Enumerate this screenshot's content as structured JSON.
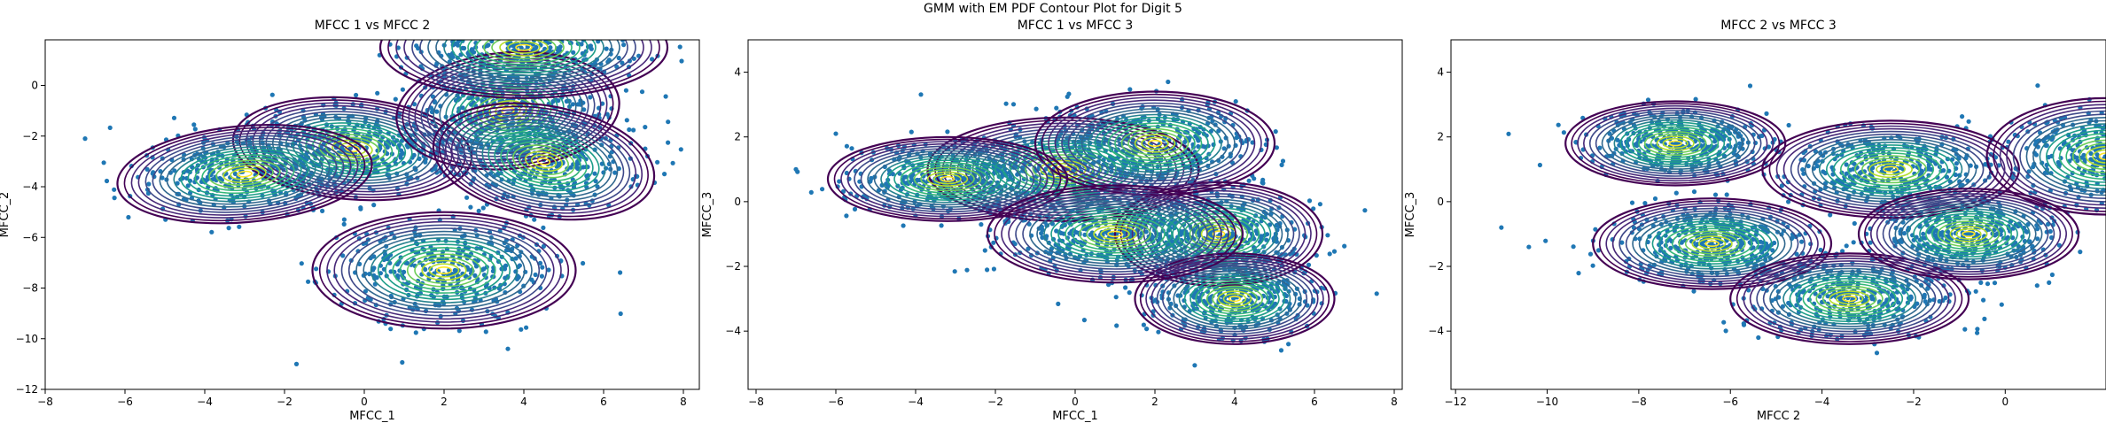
{
  "figure": {
    "title": "GMM with EM PDF Contour Plot for Digit 5"
  },
  "chart_data": [
    {
      "type": "scatter",
      "title": "MFCC 1 vs MFCC 2",
      "xlabel": "MFCC_1",
      "ylabel": "MFCC_2",
      "xlim": [
        -8,
        8.4
      ],
      "ylim": [
        -12,
        1.8
      ],
      "xticks": [
        -8,
        -6,
        -4,
        -2,
        0,
        2,
        4,
        6,
        8
      ],
      "yticks": [
        -12,
        -10,
        -8,
        -6,
        -4,
        -2,
        0
      ],
      "point_color": "#1f77b4",
      "contour_colormap": "viridis",
      "components": [
        {
          "mean": [
            -0.3,
            -2.5
          ],
          "sd": [
            3.0,
            2.0
          ],
          "rot": -5
        },
        {
          "mean": [
            3.6,
            -1.0
          ],
          "sd": [
            2.8,
            2.3
          ],
          "rot": 5
        },
        {
          "mean": [
            2.0,
            -7.3
          ],
          "sd": [
            3.3,
            2.3
          ],
          "rot": 0
        },
        {
          "mean": [
            -3.0,
            -3.5
          ],
          "sd": [
            3.2,
            1.9
          ],
          "rot": 5
        },
        {
          "mean": [
            4.5,
            -3.0
          ],
          "sd": [
            2.8,
            2.2
          ],
          "rot": -10
        },
        {
          "mean": [
            4.0,
            1.5
          ],
          "sd": [
            3.6,
            2.0
          ],
          "rot": 0
        }
      ],
      "points": {
        "count": 2200,
        "outliers": [
          [
            -1.7,
            -11.0
          ],
          [
            -7.0,
            -2.1
          ],
          [
            3.6,
            -10.4
          ]
        ]
      }
    },
    {
      "type": "scatter",
      "title": "MFCC 1 vs MFCC 3",
      "xlabel": "MFCC_1",
      "ylabel": "MFCC_3",
      "xlim": [
        -8.2,
        8.2
      ],
      "ylim": [
        -5.8,
        5.0
      ],
      "xticks": [
        -8,
        -6,
        -4,
        -2,
        0,
        2,
        4,
        6,
        8
      ],
      "yticks": [
        -4,
        -2,
        0,
        2,
        4
      ],
      "point_color": "#1f77b4",
      "contour_colormap": "viridis",
      "components": [
        {
          "mean": [
            -0.3,
            1.0
          ],
          "sd": [
            3.4,
            1.6
          ],
          "rot": 0
        },
        {
          "mean": [
            3.6,
            -1.0
          ],
          "sd": [
            2.6,
            1.6
          ],
          "rot": 0
        },
        {
          "mean": [
            4.0,
            -3.0
          ],
          "sd": [
            2.5,
            1.4
          ],
          "rot": 0
        },
        {
          "mean": [
            2.0,
            1.8
          ],
          "sd": [
            3.0,
            1.6
          ],
          "rot": 0
        },
        {
          "mean": [
            -3.2,
            0.7
          ],
          "sd": [
            3.0,
            1.3
          ],
          "rot": 0
        },
        {
          "mean": [
            1.0,
            -1.0
          ],
          "sd": [
            3.2,
            1.5
          ],
          "rot": 0
        }
      ],
      "points": {
        "count": 2200,
        "outliers": [
          [
            -7.0,
            1.0
          ],
          [
            -6.0,
            2.1
          ]
        ]
      }
    },
    {
      "type": "scatter",
      "title": "MFCC 2 vs MFCC 3",
      "xlabel": "MFCC 2",
      "ylabel": "MFCC_3",
      "xlim": [
        -12.1,
        2.2
      ],
      "ylim": [
        -5.8,
        5.0
      ],
      "xticks": [
        -12,
        -10,
        -8,
        -6,
        -4,
        -2,
        0
      ],
      "yticks": [
        -4,
        -2,
        0,
        2,
        4
      ],
      "point_color": "#1f77b4",
      "contour_colormap": "viridis",
      "components": [
        {
          "mean": [
            -7.2,
            1.8
          ],
          "sd": [
            2.4,
            1.3
          ],
          "rot": 0
        },
        {
          "mean": [
            -6.4,
            -1.3
          ],
          "sd": [
            2.6,
            1.4
          ],
          "rot": 0
        },
        {
          "mean": [
            -3.4,
            -3.0
          ],
          "sd": [
            2.6,
            1.4
          ],
          "rot": 0
        },
        {
          "mean": [
            -2.5,
            1.0
          ],
          "sd": [
            2.8,
            1.5
          ],
          "rot": 0
        },
        {
          "mean": [
            -0.8,
            -1.0
          ],
          "sd": [
            2.4,
            1.4
          ],
          "rot": 0
        },
        {
          "mean": [
            2.2,
            1.4
          ],
          "sd": [
            2.6,
            1.8
          ],
          "rot": 0
        }
      ],
      "points": {
        "count": 2200,
        "outliers": [
          [
            -11.0,
            -0.8
          ],
          [
            -10.4,
            -1.4
          ]
        ]
      }
    }
  ]
}
